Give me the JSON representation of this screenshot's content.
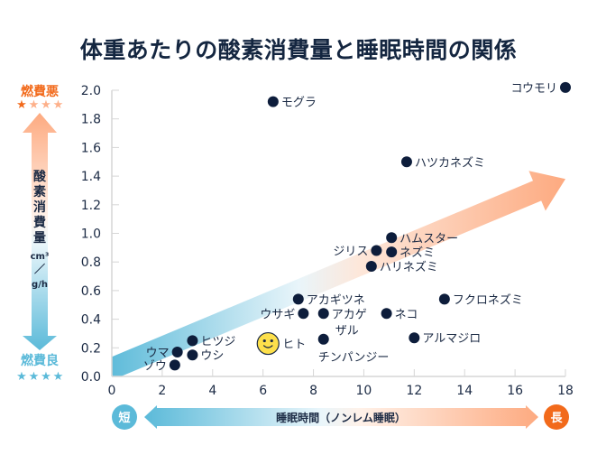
{
  "title": "体重あたりの酸素消費量と睡眠時間の関係",
  "y_side": {
    "top_label": "燃費悪",
    "top_stars": "★★★★",
    "top_stars_filled": 1,
    "vertical_label": [
      "酸",
      "素",
      "消",
      "費",
      "量"
    ],
    "unit_top": "cm³",
    "unit_slash": "／",
    "unit_bottom": "g/h",
    "bottom_label": "燃費良",
    "bottom_stars": "★★★★",
    "bottom_stars_filled": 4
  },
  "x_side": {
    "short_badge": "短",
    "long_badge": "長",
    "label": "睡眠時間（ノンレム睡眠）"
  },
  "colors": {
    "dot": "#0d1d3b",
    "orange": "#f26a1b",
    "orange_light": "#fdb08a",
    "blue": "#5bbad9",
    "blue_light": "#e6f4f9",
    "smiley": "#fde04b",
    "grid": "#d6d6d6"
  },
  "chart_data": {
    "type": "scatter",
    "title": "体重あたりの酸素消費量と睡眠時間の関係",
    "xlabel": "睡眠時間（ノンレム睡眠）",
    "ylabel": "酸素消費量 cm³/g/h",
    "xlim": [
      0,
      18
    ],
    "ylim": [
      0,
      2.0
    ],
    "x_ticks": [
      0,
      2,
      4,
      6,
      8,
      10,
      12,
      14,
      16,
      18
    ],
    "y_ticks": [
      "0.0",
      "0.2",
      "0.4",
      "0.6",
      "0.8",
      "1.0",
      "1.2",
      "1.4",
      "1.6",
      "1.8",
      "2.0"
    ],
    "grid": "tick-marks-only",
    "trend_arrow": {
      "from": [
        0,
        0.05
      ],
      "to": [
        18,
        1.38
      ]
    },
    "points": [
      {
        "name": "コウモリ",
        "x": 18.0,
        "y": 2.02,
        "label_side": "left"
      },
      {
        "name": "モグラ",
        "x": 6.4,
        "y": 1.92,
        "label_side": "right"
      },
      {
        "name": "ハツカネズミ",
        "x": 11.7,
        "y": 1.5,
        "label_side": "right"
      },
      {
        "name": "ハムスター",
        "x": 11.1,
        "y": 0.97,
        "label_side": "right"
      },
      {
        "name": "ジリス",
        "x": 10.5,
        "y": 0.88,
        "label_side": "left"
      },
      {
        "name": "ネズミ",
        "x": 11.1,
        "y": 0.87,
        "label_side": "right"
      },
      {
        "name": "ハリネズミ",
        "x": 10.3,
        "y": 0.77,
        "label_side": "right"
      },
      {
        "name": "アカギツネ",
        "x": 7.4,
        "y": 0.54,
        "label_side": "right"
      },
      {
        "name": "フクロネズミ",
        "x": 13.2,
        "y": 0.54,
        "label_side": "right"
      },
      {
        "name": "ウサギ",
        "x": 7.6,
        "y": 0.44,
        "label_side": "left"
      },
      {
        "name": "アカゲザル",
        "x": 8.4,
        "y": 0.44,
        "label_side": "right-wrap"
      },
      {
        "name": "ネコ",
        "x": 10.9,
        "y": 0.44,
        "label_side": "right"
      },
      {
        "name": "アルマジロ",
        "x": 12.0,
        "y": 0.27,
        "label_side": "right"
      },
      {
        "name": "チンパンジー",
        "x": 8.4,
        "y": 0.26,
        "label_side": "below"
      },
      {
        "name": "ヒト",
        "x": 6.2,
        "y": 0.23,
        "label_side": "right",
        "marker": "smiley"
      },
      {
        "name": "ヒツジ",
        "x": 3.2,
        "y": 0.25,
        "label_side": "right"
      },
      {
        "name": "ウシ",
        "x": 3.2,
        "y": 0.15,
        "label_side": "right"
      },
      {
        "name": "ウマ",
        "x": 2.6,
        "y": 0.17,
        "label_side": "left"
      },
      {
        "name": "ゾウ",
        "x": 2.5,
        "y": 0.08,
        "label_side": "left"
      }
    ]
  }
}
